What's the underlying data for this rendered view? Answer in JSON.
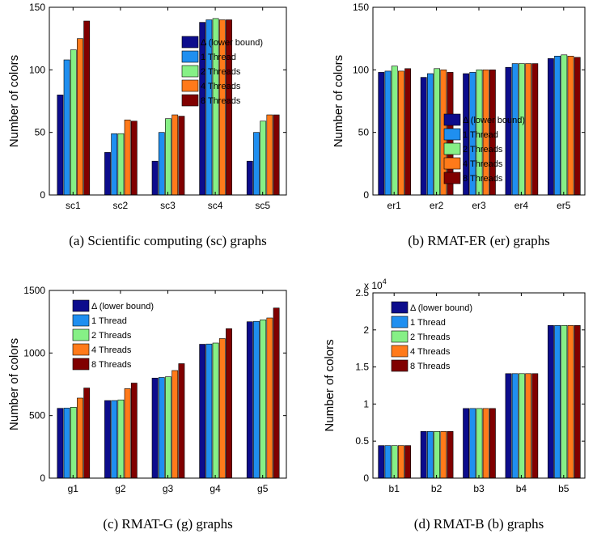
{
  "colors": [
    "#0c0c8c",
    "#1f8ff0",
    "#86f086",
    "#ff7a1a",
    "#800000"
  ],
  "chart_data": [
    {
      "type": "bar",
      "caption": "(a) Scientific computing (sc) graphs",
      "ylabel": "Number of colors",
      "ylim": [
        0,
        150
      ],
      "yticks": [
        "0",
        "50",
        "100",
        "150"
      ],
      "ytick_values": [
        0,
        50,
        100,
        150
      ],
      "exponent_label": "",
      "categories": [
        "sc1",
        "sc2",
        "sc3",
        "sc4",
        "sc5"
      ],
      "legend_position": "top-right",
      "series": [
        {
          "name": "Δ (lower bound)",
          "values": [
            80,
            34,
            27,
            138,
            27
          ]
        },
        {
          "name": "1 Thread",
          "values": [
            108,
            49,
            50,
            140,
            50
          ]
        },
        {
          "name": "2 Threads",
          "values": [
            116,
            49,
            61,
            141,
            59
          ]
        },
        {
          "name": "4 Threads",
          "values": [
            125,
            60,
            64,
            140,
            64
          ]
        },
        {
          "name": "8 Threads",
          "values": [
            139,
            59,
            63,
            140,
            64
          ]
        }
      ]
    },
    {
      "type": "bar",
      "caption": "(b) RMAT-ER (er) graphs",
      "ylabel": "Number of colors",
      "ylim": [
        0,
        150
      ],
      "yticks": [
        "0",
        "50",
        "100",
        "150"
      ],
      "ytick_values": [
        0,
        50,
        100,
        150
      ],
      "exponent_label": "",
      "categories": [
        "er1",
        "er2",
        "er3",
        "er4",
        "er5"
      ],
      "legend_position": "lower-right",
      "series": [
        {
          "name": "Δ (lower bound)",
          "values": [
            98,
            94,
            97,
            102,
            109
          ]
        },
        {
          "name": "1 Thread",
          "values": [
            99,
            97,
            98,
            105,
            111
          ]
        },
        {
          "name": "2 Threads",
          "values": [
            103,
            101,
            100,
            105,
            112
          ]
        },
        {
          "name": "4 Threads",
          "values": [
            99,
            100,
            100,
            105,
            111
          ]
        },
        {
          "name": "8 Threads",
          "values": [
            101,
            98,
            100,
            105,
            110
          ]
        }
      ]
    },
    {
      "type": "bar",
      "caption": "(c) RMAT-G (g) graphs",
      "ylabel": "Number of colors",
      "ylim": [
        0,
        1500
      ],
      "yticks": [
        "0",
        "500",
        "1000",
        "1500"
      ],
      "ytick_values": [
        0,
        500,
        1000,
        1500
      ],
      "exponent_label": "",
      "categories": [
        "g1",
        "g2",
        "g3",
        "g4",
        "g5"
      ],
      "legend_position": "top-left",
      "series": [
        {
          "name": "Δ (lower bound)",
          "values": [
            558,
            620,
            800,
            1070,
            1250
          ]
        },
        {
          "name": "1 Thread",
          "values": [
            560,
            620,
            805,
            1072,
            1253
          ]
        },
        {
          "name": "2 Threads",
          "values": [
            567,
            625,
            810,
            1080,
            1265
          ]
        },
        {
          "name": "4 Threads",
          "values": [
            640,
            715,
            860,
            1115,
            1280
          ]
        },
        {
          "name": "8 Threads",
          "values": [
            720,
            760,
            915,
            1195,
            1360
          ]
        }
      ]
    },
    {
      "type": "bar",
      "caption": "(d) RMAT-B (b) graphs",
      "ylabel": "Number of colors",
      "ylim": [
        0,
        2.5
      ],
      "yticks": [
        "0",
        "0.5",
        "1",
        "1.5",
        "2",
        "2.5"
      ],
      "ytick_values": [
        0,
        0.5,
        1,
        1.5,
        2,
        2.5
      ],
      "exponent_label": "x 10",
      "exponent_power": "4",
      "categories": [
        "b1",
        "b2",
        "b3",
        "b4",
        "b5"
      ],
      "legend_position": "top-left",
      "series": [
        {
          "name": "Δ (lower bound)",
          "values": [
            0.44,
            0.63,
            0.94,
            1.41,
            2.06
          ]
        },
        {
          "name": "1 Thread",
          "values": [
            0.44,
            0.63,
            0.94,
            1.41,
            2.06
          ]
        },
        {
          "name": "2 Threads",
          "values": [
            0.44,
            0.63,
            0.94,
            1.41,
            2.06
          ]
        },
        {
          "name": "4 Threads",
          "values": [
            0.44,
            0.63,
            0.94,
            1.41,
            2.06
          ]
        },
        {
          "name": "8 Threads",
          "values": [
            0.44,
            0.63,
            0.94,
            1.41,
            2.06
          ]
        }
      ]
    }
  ]
}
